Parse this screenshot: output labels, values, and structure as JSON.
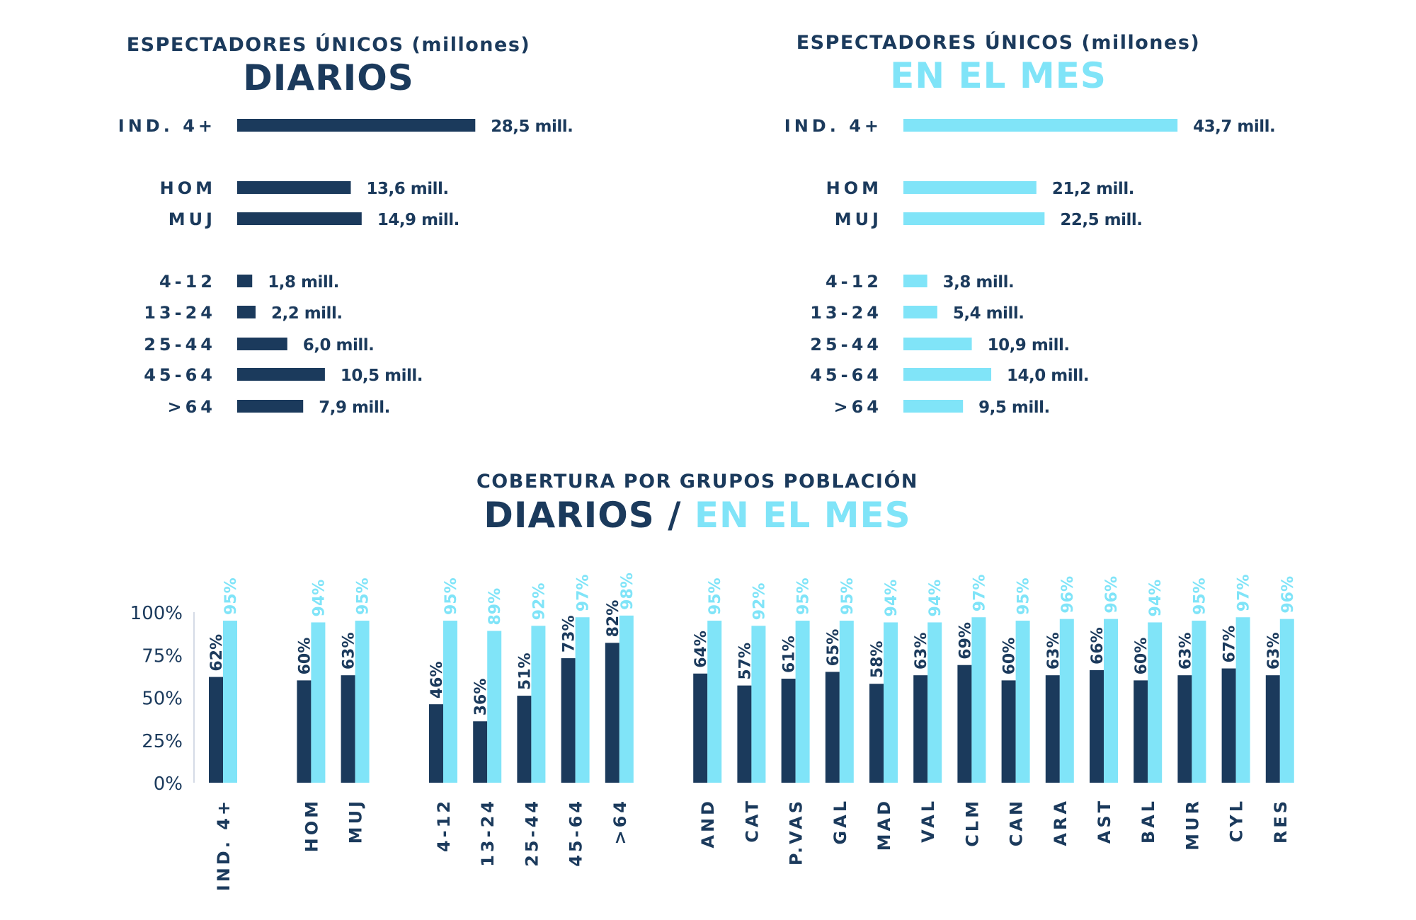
{
  "colors": {
    "dark": "#1b3a5c",
    "light": "#80e4f8"
  },
  "chart_data": [
    {
      "type": "bar",
      "orientation": "horizontal",
      "title": "ESPECTADORES ÚNICOS (millones)",
      "subtitle": "DIARIOS",
      "categories": [
        "IND. 4+",
        "HOM",
        "MUJ",
        "4-12",
        "13-24",
        "25-44",
        "45-64",
        ">64"
      ],
      "values": [
        28.5,
        13.6,
        14.9,
        1.8,
        2.2,
        6.0,
        10.5,
        7.9
      ],
      "data_labels": [
        "28,5 mill.",
        "13,6 mill.",
        "14,9 mill.",
        "1,8 mill.",
        "2,2 mill.",
        "6,0 mill.",
        "10,5 mill.",
        "7,9 mill."
      ],
      "color": "#1b3a5c"
    },
    {
      "type": "bar",
      "orientation": "horizontal",
      "title": "ESPECTADORES ÚNICOS (millones)",
      "subtitle": "EN EL MES",
      "categories": [
        "IND. 4+",
        "HOM",
        "MUJ",
        "4-12",
        "13-24",
        "25-44",
        "45-64",
        ">64"
      ],
      "values": [
        43.7,
        21.2,
        22.5,
        3.8,
        5.4,
        10.9,
        14.0,
        9.5
      ],
      "data_labels": [
        "43,7 mill.",
        "21,2 mill.",
        "22,5 mill.",
        "3,8 mill.",
        "5,4 mill.",
        "10,9 mill.",
        "14,0 mill.",
        "9,5 mill."
      ],
      "color": "#80e4f8"
    },
    {
      "type": "bar",
      "title": "COBERTURA POR GRUPOS POBLACIÓN",
      "subtitle_dark": "DIARIOS",
      "subtitle_sep": " / ",
      "subtitle_light": "EN EL MES",
      "categories": [
        "IND. 4+",
        "HOM",
        "MUJ",
        "4-12",
        "13-24",
        "25-44",
        "45-64",
        ">64",
        "AND",
        "CAT",
        "P.VAS",
        "GAL",
        "MAD",
        "VAL",
        "CLM",
        "CAN",
        "ARA",
        "AST",
        "BAL",
        "MUR",
        "CYL",
        "RES"
      ],
      "series": [
        {
          "values": [
            62,
            60,
            63,
            46,
            36,
            51,
            73,
            82,
            64,
            57,
            61,
            65,
            58,
            63,
            69,
            60,
            63,
            66,
            60,
            63,
            67,
            63
          ],
          "color": "#1b3a5c"
        },
        {
          "values": [
            95,
            94,
            95,
            95,
            89,
            92,
            97,
            98,
            95,
            92,
            95,
            95,
            94,
            94,
            97,
            95,
            96,
            96,
            94,
            95,
            97,
            96
          ],
          "color": "#80e4f8"
        }
      ],
      "ylim": [
        0,
        100
      ],
      "yticks": [
        "0%",
        "25%",
        "50%",
        "75%",
        "100%"
      ],
      "grid": false
    }
  ]
}
